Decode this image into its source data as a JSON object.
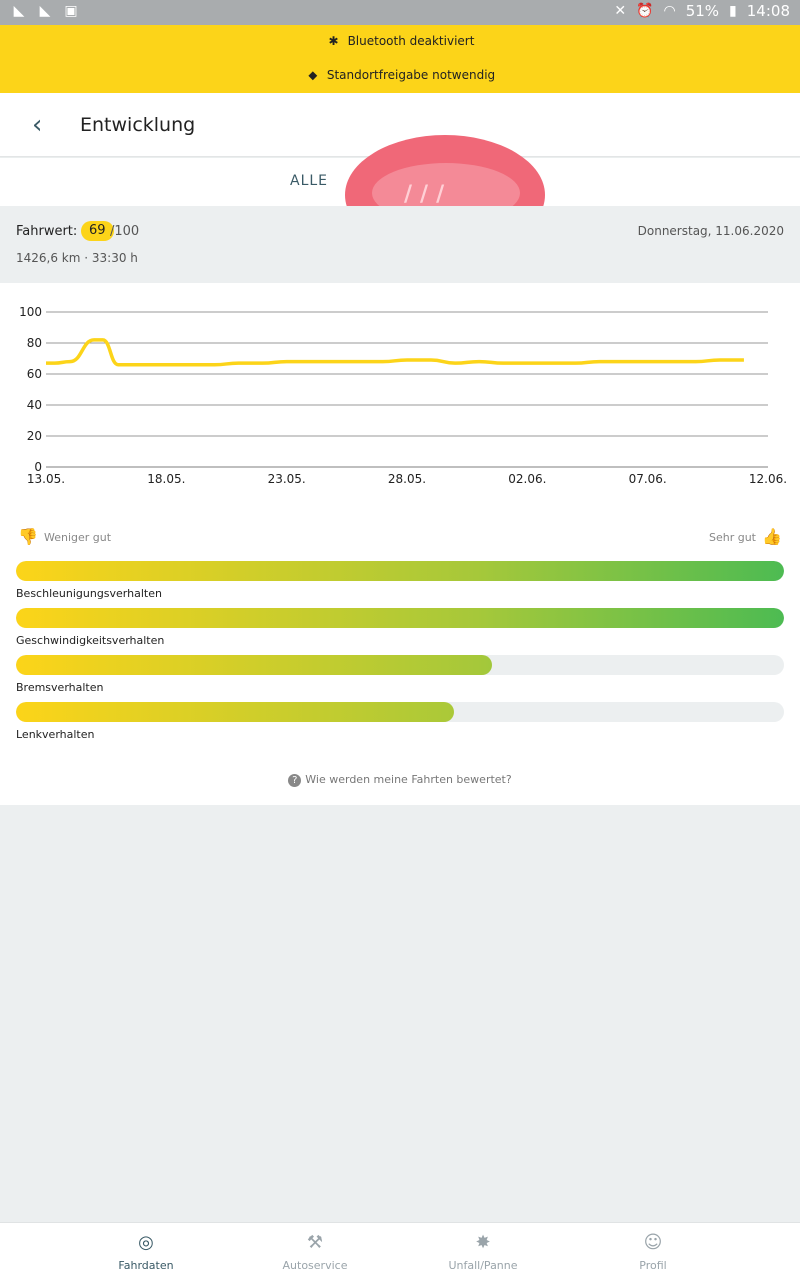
{
  "statusbar": {
    "battery": "51%",
    "time": "14:08"
  },
  "banner": {
    "bluetooth": "Bluetooth deaktiviert",
    "location": "Standortfreigabe notwendig"
  },
  "header": {
    "title": "Entwicklung"
  },
  "tabs": {
    "all": "ALLE"
  },
  "summary": {
    "label": "Fahrwert:",
    "score": "69",
    "max": "/100",
    "date": "Donnerstag, 11.06.2020",
    "distance": "1426,6 km · 33:30 h"
  },
  "chart_data": {
    "type": "line",
    "ylim": [
      0,
      100
    ],
    "yticks": [
      "0",
      "20",
      "40",
      "60",
      "80",
      "100"
    ],
    "xticks": [
      "13.05.",
      "18.05.",
      "23.05.",
      "28.05.",
      "02.06.",
      "07.06.",
      "12.06."
    ],
    "grid": true,
    "x": [
      "13.05.",
      "13.05.",
      "14.05.",
      "15.05.",
      "15.05.",
      "16.05.",
      "17.05.",
      "18.05.",
      "19.05.",
      "20.05.",
      "21.05.",
      "22.05.",
      "23.05.",
      "24.05.",
      "25.05.",
      "26.05.",
      "27.05.",
      "28.05.",
      "29.05.",
      "30.05.",
      "31.05.",
      "01.06.",
      "02.06.",
      "03.06.",
      "04.06.",
      "05.06.",
      "06.06.",
      "07.06.",
      "08.06.",
      "09.06.",
      "10.06.",
      "11.06."
    ],
    "values": [
      67,
      67,
      68,
      82,
      82,
      66,
      66,
      66,
      66,
      66,
      67,
      67,
      68,
      68,
      68,
      68,
      68,
      69,
      69,
      67,
      68,
      67,
      67,
      67,
      67,
      68,
      68,
      68,
      68,
      68,
      69,
      69
    ],
    "color": "#fcd419"
  },
  "rating": {
    "low": "Weniger gut",
    "high": "Sehr gut"
  },
  "bars": [
    {
      "label": "Beschleunigungsverhalten",
      "value": 100
    },
    {
      "label": "Geschwindigkeitsverhalten",
      "value": 100
    },
    {
      "label": "Bremsverhalten",
      "value": 62
    },
    {
      "label": "Lenkverhalten",
      "value": 57
    }
  ],
  "help": {
    "text": "Wie werden meine Fahrten bewertet?"
  },
  "nav": {
    "items": [
      {
        "label": "Fahrdaten",
        "icon": "steering-wheel-icon"
      },
      {
        "label": "Autoservice",
        "icon": "car-service-icon"
      },
      {
        "label": "Unfall/Panne",
        "icon": "car-crash-icon"
      },
      {
        "label": "Profil",
        "icon": "person-icon"
      }
    ]
  }
}
